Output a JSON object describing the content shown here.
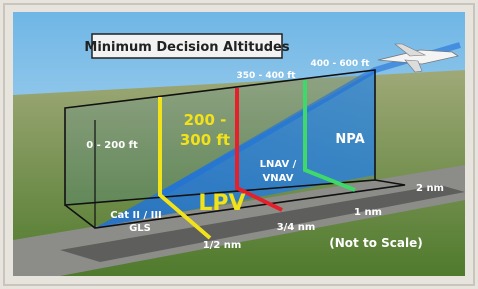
{
  "title": "Minimum Decision Altitudes",
  "altitudes": {
    "lpv": [
      "200 -",
      "300 ft"
    ],
    "cat": "0 - 200 ft",
    "lnav": "350 - 400 ft",
    "npa": "400 - 600 ft"
  },
  "approaches": {
    "cat": [
      "Cat II / III",
      "GLS"
    ],
    "lpv": "LPV",
    "lnav": [
      "LNAV /",
      "VNAV"
    ],
    "npa": "NPA"
  },
  "distances": [
    "1/2 nm",
    "3/4 nm",
    "1 nm",
    "2 nm"
  ],
  "note": "(Not to Scale)"
}
